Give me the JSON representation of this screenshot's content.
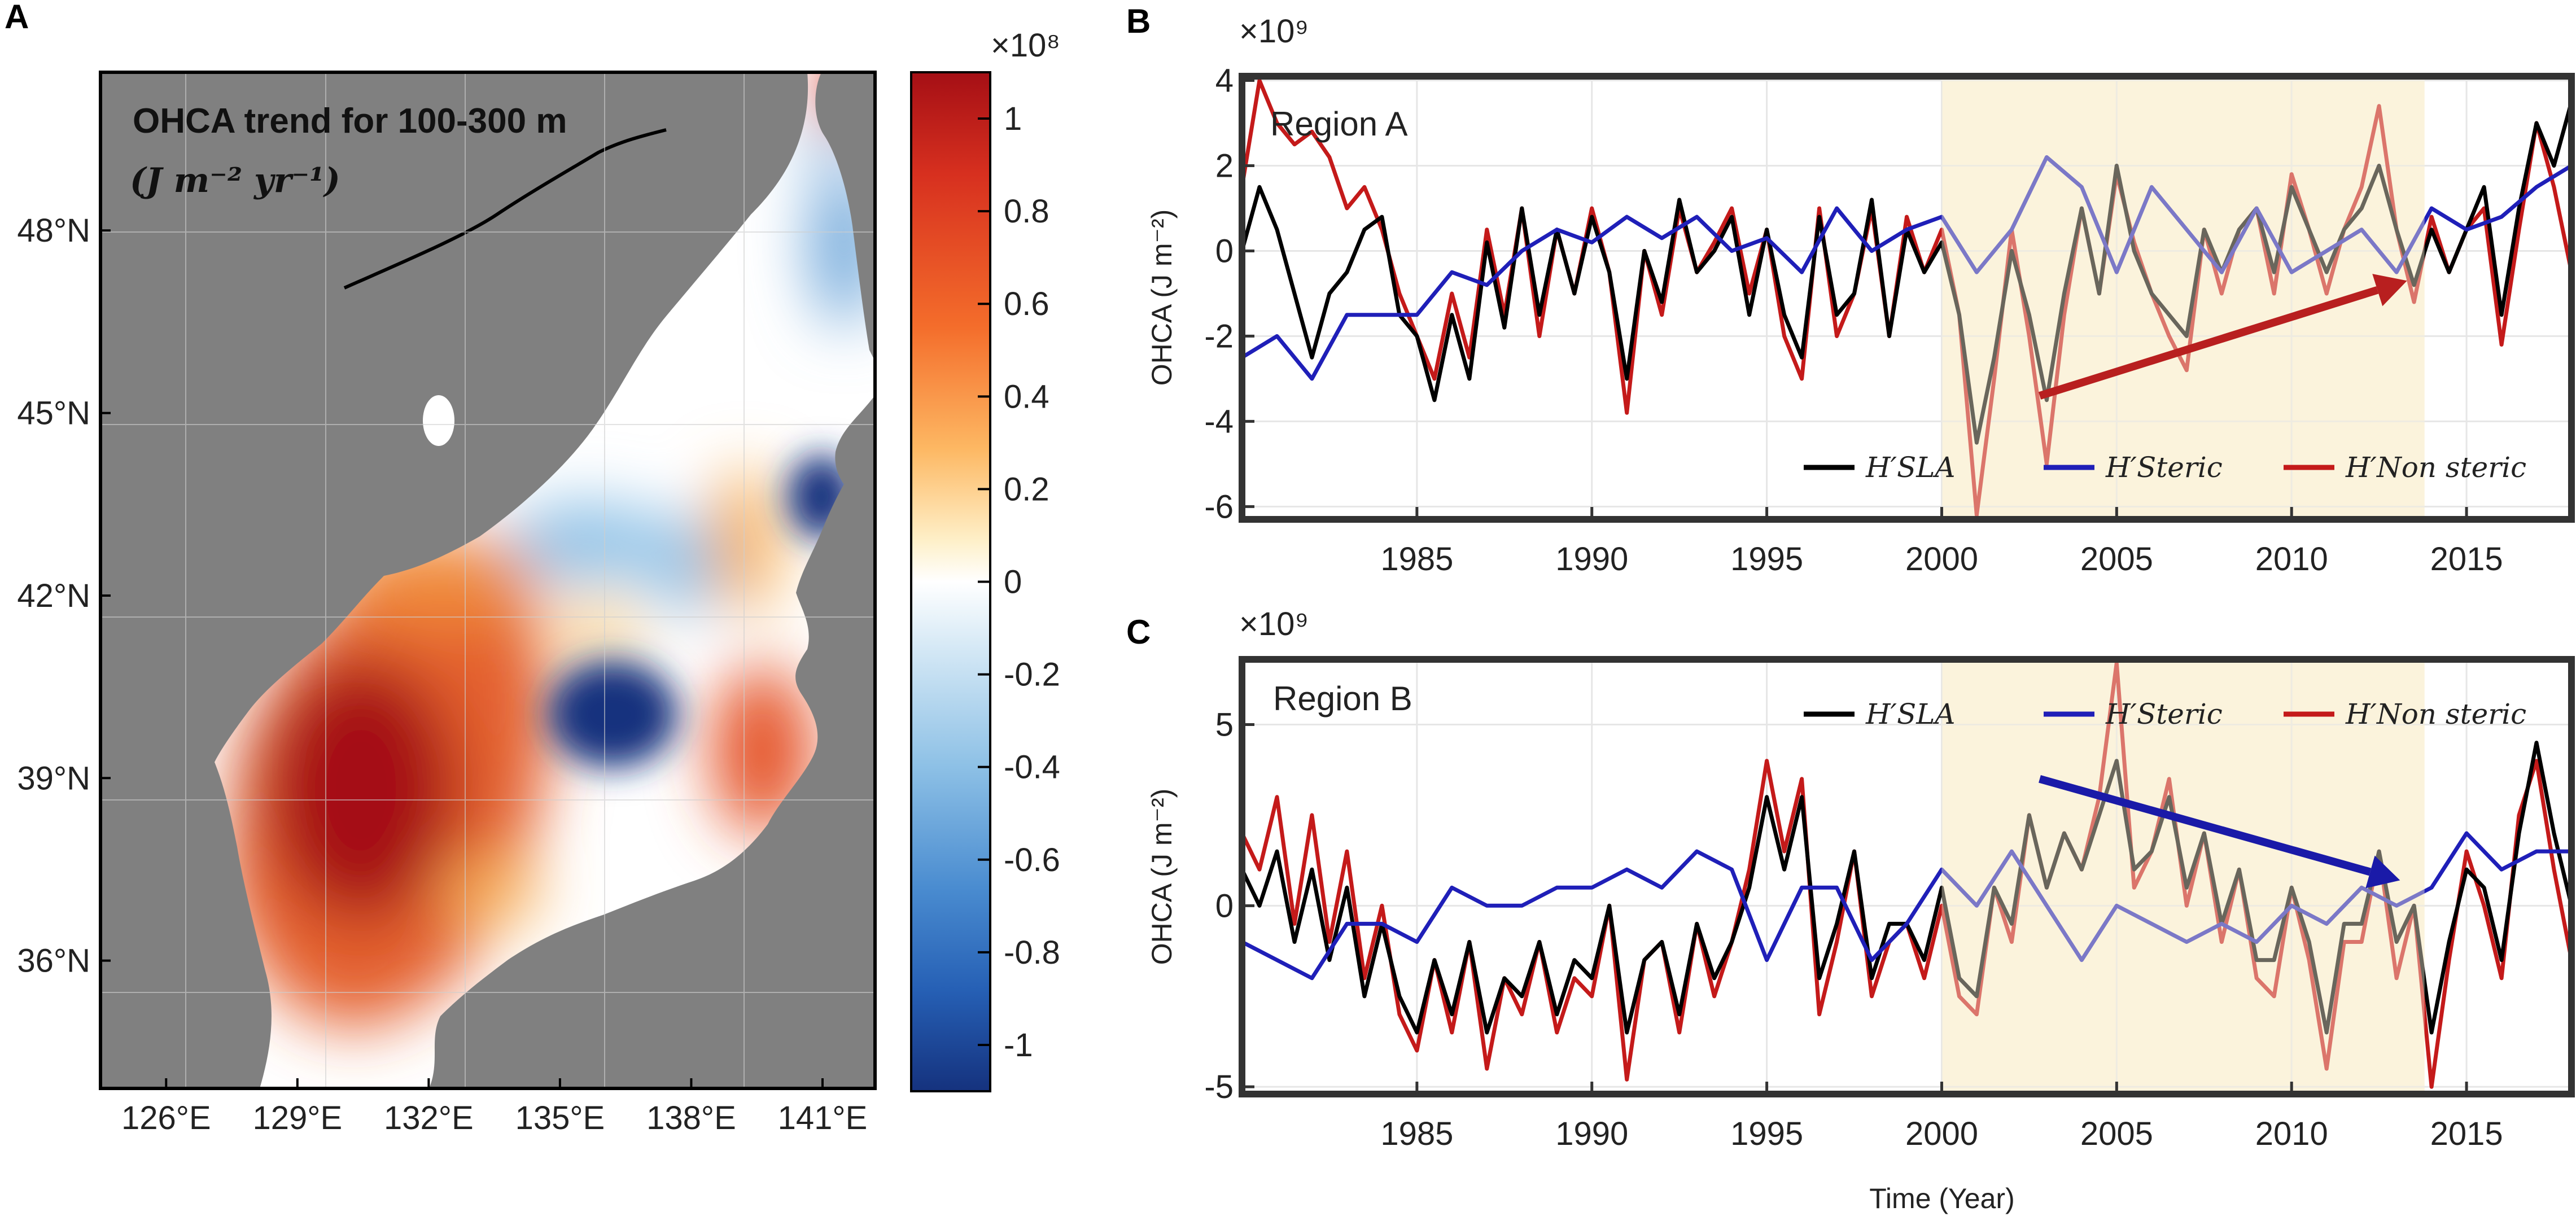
{
  "colors": {
    "land": "#808080",
    "h_sla": "#000000",
    "h_steric": "#1f1fb8",
    "h_nonsteric": "#c41a1a",
    "highlight": "#fbf3dc",
    "trend_a": "#b81f1f",
    "trend_b": "#1a1aa8"
  },
  "chart_data": [
    {
      "panel": "A",
      "type": "heatmap",
      "title": "OHCA trend for 100-300 m",
      "unit_label": "(J m⁻² yr⁻¹)",
      "x_ticks": [
        "126°E",
        "129°E",
        "132°E",
        "135°E",
        "138°E",
        "141°E"
      ],
      "x_tick_values": [
        126,
        129,
        132,
        135,
        138,
        141
      ],
      "y_ticks": [
        "48°N",
        "45°N",
        "42°N",
        "39°N",
        "36°N"
      ],
      "y_tick_values": [
        48,
        45,
        42,
        39,
        36
      ],
      "xlim": [
        124.5,
        142.2
      ],
      "ylim": [
        33.9,
        50.6
      ],
      "colorbar": {
        "exponent_label": "×10⁸",
        "ticks": [
          "1",
          "0.8",
          "0.6",
          "0.4",
          "0.2",
          "0",
          "-0.2",
          "-0.4",
          "-0.6",
          "-0.8",
          "-1"
        ],
        "tick_values": [
          1,
          0.8,
          0.6,
          0.4,
          0.2,
          0,
          -0.2,
          -0.4,
          -0.6,
          -0.8,
          -1
        ],
        "range": [
          -1.1,
          1.1
        ]
      },
      "features": [
        {
          "name": "korea-warm-core",
          "lon": 130.7,
          "lat": 39.2,
          "value": 1.05
        },
        {
          "name": "ulleung-basin-warm",
          "lon": 131.5,
          "lat": 37.0,
          "value": 0.55
        },
        {
          "name": "central-cold-core",
          "lon": 136.2,
          "lat": 40.5,
          "value": -1.1
        },
        {
          "name": "northeast-cold-core",
          "lon": 140.3,
          "lat": 43.8,
          "value": -1.1
        },
        {
          "name": "tatar-strait-cold",
          "lon": 140.7,
          "lat": 47.9,
          "value": -0.5
        },
        {
          "name": "yamato-warm",
          "lon": 138.6,
          "lat": 40.0,
          "value": 0.6
        },
        {
          "name": "north-warm-tongue",
          "lon": 138.4,
          "lat": 42.5,
          "value": 0.3
        },
        {
          "name": "northwest-cold-patch",
          "lon": 134.5,
          "lat": 43.0,
          "value": -0.4
        }
      ]
    },
    {
      "panel": "B",
      "type": "line",
      "region": "Region A",
      "exponent_label": "×10⁹",
      "ylabel": "OHCA (J m⁻²)",
      "xlim": [
        1980,
        2018
      ],
      "ylim": [
        -6.3,
        4.1
      ],
      "x_ticks": [
        1985,
        1990,
        1995,
        2000,
        2005,
        2010,
        2015
      ],
      "y_ticks": [
        4,
        2,
        0,
        -2,
        -4,
        -6
      ],
      "highlight": [
        2000,
        2013.8
      ],
      "legend": [
        "H′SLA",
        "H′Steric",
        "H′Non steric"
      ],
      "trend_arrow": {
        "from": [
          2002.8,
          -3.4
        ],
        "to": [
          2013.3,
          -0.7
        ]
      },
      "series": [
        {
          "name": "H′Non steric",
          "x": [
            1980.0,
            1980.5,
            1981.0,
            1981.5,
            1982.0,
            1982.5,
            1983.0,
            1983.5,
            1984.0,
            1984.5,
            1985.0,
            1985.5,
            1986.0,
            1986.5,
            1987.0,
            1987.5,
            1988.0,
            1988.5,
            1989.0,
            1989.5,
            1990.0,
            1990.5,
            1991.0,
            1991.5,
            1992.0,
            1992.5,
            1993.0,
            1993.5,
            1994.0,
            1994.5,
            1995.0,
            1995.5,
            1996.0,
            1996.5,
            1997.0,
            1997.5,
            1998.0,
            1998.5,
            1999.0,
            1999.5,
            2000.0,
            2000.5,
            2001.0,
            2001.5,
            2002.0,
            2002.5,
            2003.0,
            2003.5,
            2004.0,
            2004.5,
            2005.0,
            2005.5,
            2006.0,
            2006.5,
            2007.0,
            2007.5,
            2008.0,
            2008.5,
            2009.0,
            2009.5,
            2010.0,
            2010.5,
            2011.0,
            2011.5,
            2012.0,
            2012.5,
            2013.0,
            2013.5,
            2014.0,
            2014.5,
            2015.0,
            2015.5,
            2016.0,
            2016.5,
            2017.0,
            2017.5,
            2018.0
          ],
          "values": [
            1.5,
            4.0,
            3.0,
            2.5,
            2.8,
            2.2,
            1.0,
            1.5,
            0.5,
            -1.0,
            -2.0,
            -3.0,
            -1.0,
            -2.5,
            0.5,
            -1.5,
            1.0,
            -2.0,
            0.5,
            -1.0,
            1.0,
            -0.5,
            -3.8,
            0.0,
            -1.5,
            1.0,
            -0.5,
            0.2,
            1.0,
            -1.0,
            0.5,
            -2.0,
            -3.0,
            1.0,
            -2.0,
            -1.0,
            1.0,
            -2.0,
            0.8,
            -0.5,
            0.5,
            -1.5,
            -6.2,
            -3.0,
            0.5,
            -2.0,
            -5.0,
            -1.5,
            1.0,
            -1.0,
            1.8,
            0.2,
            -1.0,
            -2.0,
            -2.8,
            0.5,
            -1.0,
            0.5,
            1.0,
            -1.0,
            1.8,
            0.5,
            -1.0,
            0.5,
            1.5,
            3.4,
            0.5,
            -1.2,
            0.8,
            -0.5,
            0.5,
            1.0,
            -2.2,
            0.5,
            3.0,
            1.5,
            -0.5
          ]
        },
        {
          "name": "H′SLA",
          "x": [
            1980.0,
            1980.5,
            1981.0,
            1981.5,
            1982.0,
            1982.5,
            1983.0,
            1983.5,
            1984.0,
            1984.5,
            1985.0,
            1985.5,
            1986.0,
            1986.5,
            1987.0,
            1987.5,
            1988.0,
            1988.5,
            1989.0,
            1989.5,
            1990.0,
            1990.5,
            1991.0,
            1991.5,
            1992.0,
            1992.5,
            1993.0,
            1993.5,
            1994.0,
            1994.5,
            1995.0,
            1995.5,
            1996.0,
            1996.5,
            1997.0,
            1997.5,
            1998.0,
            1998.5,
            1999.0,
            1999.5,
            2000.0,
            2000.5,
            2001.0,
            2001.5,
            2002.0,
            2002.5,
            2003.0,
            2003.5,
            2004.0,
            2004.5,
            2005.0,
            2005.5,
            2006.0,
            2006.5,
            2007.0,
            2007.5,
            2008.0,
            2008.5,
            2009.0,
            2009.5,
            2010.0,
            2010.5,
            2011.0,
            2011.5,
            2012.0,
            2012.5,
            2013.0,
            2013.5,
            2014.0,
            2014.5,
            2015.0,
            2015.5,
            2016.0,
            2016.5,
            2017.0,
            2017.5,
            2018.0
          ],
          "values": [
            0.0,
            1.5,
            0.5,
            -1.0,
            -2.5,
            -1.0,
            -0.5,
            0.5,
            0.8,
            -1.5,
            -2.0,
            -3.5,
            -1.5,
            -3.0,
            0.2,
            -1.8,
            1.0,
            -1.5,
            0.5,
            -1.0,
            0.8,
            -0.5,
            -3.0,
            0.0,
            -1.2,
            1.2,
            -0.5,
            0.0,
            0.8,
            -1.5,
            0.5,
            -1.5,
            -2.5,
            0.8,
            -1.5,
            -1.0,
            1.2,
            -2.0,
            0.5,
            -0.5,
            0.2,
            -1.5,
            -4.5,
            -2.5,
            0.0,
            -1.5,
            -3.5,
            -1.0,
            1.0,
            -1.0,
            2.0,
            0.0,
            -1.0,
            -1.5,
            -2.0,
            0.5,
            -0.5,
            0.5,
            1.0,
            -0.5,
            1.5,
            0.5,
            -0.5,
            0.5,
            1.0,
            2.0,
            0.5,
            -0.8,
            0.5,
            -0.5,
            0.5,
            1.5,
            -1.5,
            1.0,
            3.0,
            2.0,
            3.5
          ]
        },
        {
          "name": "H′Steric",
          "x": [
            1980.0,
            1981.0,
            1982.0,
            1983.0,
            1984.0,
            1985.0,
            1986.0,
            1987.0,
            1988.0,
            1989.0,
            1990.0,
            1991.0,
            1992.0,
            1993.0,
            1994.0,
            1995.0,
            1996.0,
            1997.0,
            1998.0,
            1999.0,
            2000.0,
            2001.0,
            2002.0,
            2003.0,
            2004.0,
            2005.0,
            2006.0,
            2007.0,
            2008.0,
            2009.0,
            2010.0,
            2011.0,
            2012.0,
            2013.0,
            2014.0,
            2015.0,
            2016.0,
            2017.0,
            2018.0
          ],
          "values": [
            -2.5,
            -2.0,
            -3.0,
            -1.5,
            -1.5,
            -1.5,
            -0.5,
            -0.8,
            0.0,
            0.5,
            0.2,
            0.8,
            0.3,
            0.8,
            0.0,
            0.3,
            -0.5,
            1.0,
            0.0,
            0.5,
            0.8,
            -0.5,
            0.5,
            2.2,
            1.5,
            -0.5,
            1.5,
            0.5,
            -0.5,
            1.0,
            -0.5,
            0.0,
            0.5,
            -0.5,
            1.0,
            0.5,
            0.8,
            1.5,
            2.0
          ]
        }
      ]
    },
    {
      "panel": "C",
      "type": "line",
      "region": "Region B",
      "exponent_label": "×10⁹",
      "ylabel": "OHCA (J m⁻²)",
      "xaxis_title": "Time (Year)",
      "xlim": [
        1980,
        2018
      ],
      "ylim": [
        -5.2,
        6.8
      ],
      "x_ticks": [
        1985,
        1990,
        1995,
        2000,
        2005,
        2010,
        2015
      ],
      "y_ticks": [
        5,
        0,
        -5
      ],
      "highlight": [
        2000,
        2013.8
      ],
      "legend": [
        "H′SLA",
        "H′Steric",
        "H′Non steric"
      ],
      "trend_arrow": {
        "from": [
          2002.8,
          3.5
        ],
        "to": [
          2013.1,
          0.7
        ]
      },
      "series": [
        {
          "name": "H′Non steric",
          "x": [
            1980.0,
            1980.5,
            1981.0,
            1981.5,
            1982.0,
            1982.5,
            1983.0,
            1983.5,
            1984.0,
            1984.5,
            1985.0,
            1985.5,
            1986.0,
            1986.5,
            1987.0,
            1987.5,
            1988.0,
            1988.5,
            1989.0,
            1989.5,
            1990.0,
            1990.5,
            1991.0,
            1991.5,
            1992.0,
            1992.5,
            1993.0,
            1993.5,
            1994.0,
            1994.5,
            1995.0,
            1995.5,
            1996.0,
            1996.5,
            1997.0,
            1997.5,
            1998.0,
            1998.5,
            1999.0,
            1999.5,
            2000.0,
            2000.5,
            2001.0,
            2001.5,
            2002.0,
            2002.5,
            2003.0,
            2003.5,
            2004.0,
            2004.5,
            2005.0,
            2005.5,
            2006.0,
            2006.5,
            2007.0,
            2007.5,
            2008.0,
            2008.5,
            2009.0,
            2009.5,
            2010.0,
            2010.5,
            2011.0,
            2011.5,
            2012.0,
            2012.5,
            2013.0,
            2013.5,
            2014.0,
            2014.5,
            2015.0,
            2015.5,
            2016.0,
            2016.5,
            2017.0,
            2017.5,
            2018.0
          ],
          "values": [
            2.0,
            1.0,
            3.0,
            -0.5,
            2.5,
            -1.0,
            1.5,
            -2.0,
            0.0,
            -3.0,
            -4.0,
            -1.5,
            -3.5,
            -1.0,
            -4.5,
            -2.0,
            -3.0,
            -1.0,
            -3.5,
            -2.0,
            -2.5,
            0.0,
            -4.8,
            -1.5,
            -1.0,
            -3.5,
            -0.5,
            -2.5,
            -1.0,
            1.0,
            4.0,
            1.5,
            3.5,
            -3.0,
            -1.0,
            1.5,
            -2.5,
            -1.0,
            -0.5,
            -2.0,
            0.0,
            -2.5,
            -3.0,
            0.5,
            -1.0,
            2.5,
            0.5,
            2.0,
            1.0,
            3.0,
            6.7,
            0.5,
            1.5,
            3.5,
            0.0,
            2.0,
            -1.0,
            1.0,
            -2.0,
            -2.5,
            0.5,
            -1.5,
            -4.5,
            -1.0,
            -1.0,
            1.5,
            -2.0,
            0.0,
            -5.0,
            -1.5,
            1.5,
            0.0,
            -2.0,
            2.5,
            4.0,
            1.0,
            -1.5
          ]
        },
        {
          "name": "H′SLA",
          "x": [
            1980.0,
            1980.5,
            1981.0,
            1981.5,
            1982.0,
            1982.5,
            1983.0,
            1983.5,
            1984.0,
            1984.5,
            1985.0,
            1985.5,
            1986.0,
            1986.5,
            1987.0,
            1987.5,
            1988.0,
            1988.5,
            1989.0,
            1989.5,
            1990.0,
            1990.5,
            1991.0,
            1991.5,
            1992.0,
            1992.5,
            1993.0,
            1993.5,
            1994.0,
            1994.5,
            1995.0,
            1995.5,
            1996.0,
            1996.5,
            1997.0,
            1997.5,
            1998.0,
            1998.5,
            1999.0,
            1999.5,
            2000.0,
            2000.5,
            2001.0,
            2001.5,
            2002.0,
            2002.5,
            2003.0,
            2003.5,
            2004.0,
            2004.5,
            2005.0,
            2005.5,
            2006.0,
            2006.5,
            2007.0,
            2007.5,
            2008.0,
            2008.5,
            2009.0,
            2009.5,
            2010.0,
            2010.5,
            2011.0,
            2011.5,
            2012.0,
            2012.5,
            2013.0,
            2013.5,
            2014.0,
            2014.5,
            2015.0,
            2015.5,
            2016.0,
            2016.5,
            2017.0,
            2017.5,
            2018.0
          ],
          "values": [
            1.0,
            0.0,
            1.5,
            -1.0,
            1.0,
            -1.5,
            0.5,
            -2.5,
            -0.5,
            -2.5,
            -3.5,
            -1.5,
            -3.0,
            -1.0,
            -3.5,
            -2.0,
            -2.5,
            -1.0,
            -3.0,
            -1.5,
            -2.0,
            0.0,
            -3.5,
            -1.5,
            -1.0,
            -3.0,
            -0.5,
            -2.0,
            -1.0,
            0.5,
            3.0,
            1.0,
            3.0,
            -2.0,
            -0.5,
            1.5,
            -2.0,
            -0.5,
            -0.5,
            -1.5,
            0.5,
            -2.0,
            -2.5,
            0.5,
            -0.5,
            2.5,
            0.5,
            2.0,
            1.0,
            2.5,
            4.0,
            1.0,
            1.5,
            3.0,
            0.5,
            2.0,
            -0.5,
            1.0,
            -1.5,
            -1.5,
            0.5,
            -1.0,
            -3.5,
            -0.5,
            -0.5,
            1.5,
            -1.0,
            0.0,
            -3.5,
            -1.0,
            1.0,
            0.5,
            -1.5,
            2.0,
            4.5,
            2.0,
            0.0
          ]
        },
        {
          "name": "H′Steric",
          "x": [
            1980.0,
            1981.0,
            1982.0,
            1983.0,
            1984.0,
            1985.0,
            1986.0,
            1987.0,
            1988.0,
            1989.0,
            1990.0,
            1991.0,
            1992.0,
            1993.0,
            1994.0,
            1995.0,
            1996.0,
            1997.0,
            1998.0,
            1999.0,
            2000.0,
            2001.0,
            2002.0,
            2003.0,
            2004.0,
            2005.0,
            2006.0,
            2007.0,
            2008.0,
            2009.0,
            2010.0,
            2011.0,
            2012.0,
            2013.0,
            2014.0,
            2015.0,
            2016.0,
            2017.0,
            2018.0
          ],
          "values": [
            -1.0,
            -1.5,
            -2.0,
            -0.5,
            -0.5,
            -1.0,
            0.5,
            0.0,
            0.0,
            0.5,
            0.5,
            1.0,
            0.5,
            1.5,
            1.0,
            -1.5,
            0.5,
            0.5,
            -1.5,
            -0.5,
            1.0,
            0.0,
            1.5,
            0.0,
            -1.5,
            0.0,
            -0.5,
            -1.0,
            -0.5,
            -1.0,
            0.0,
            -0.5,
            0.5,
            0.0,
            0.5,
            2.0,
            1.0,
            1.5,
            1.5
          ]
        }
      ]
    }
  ]
}
